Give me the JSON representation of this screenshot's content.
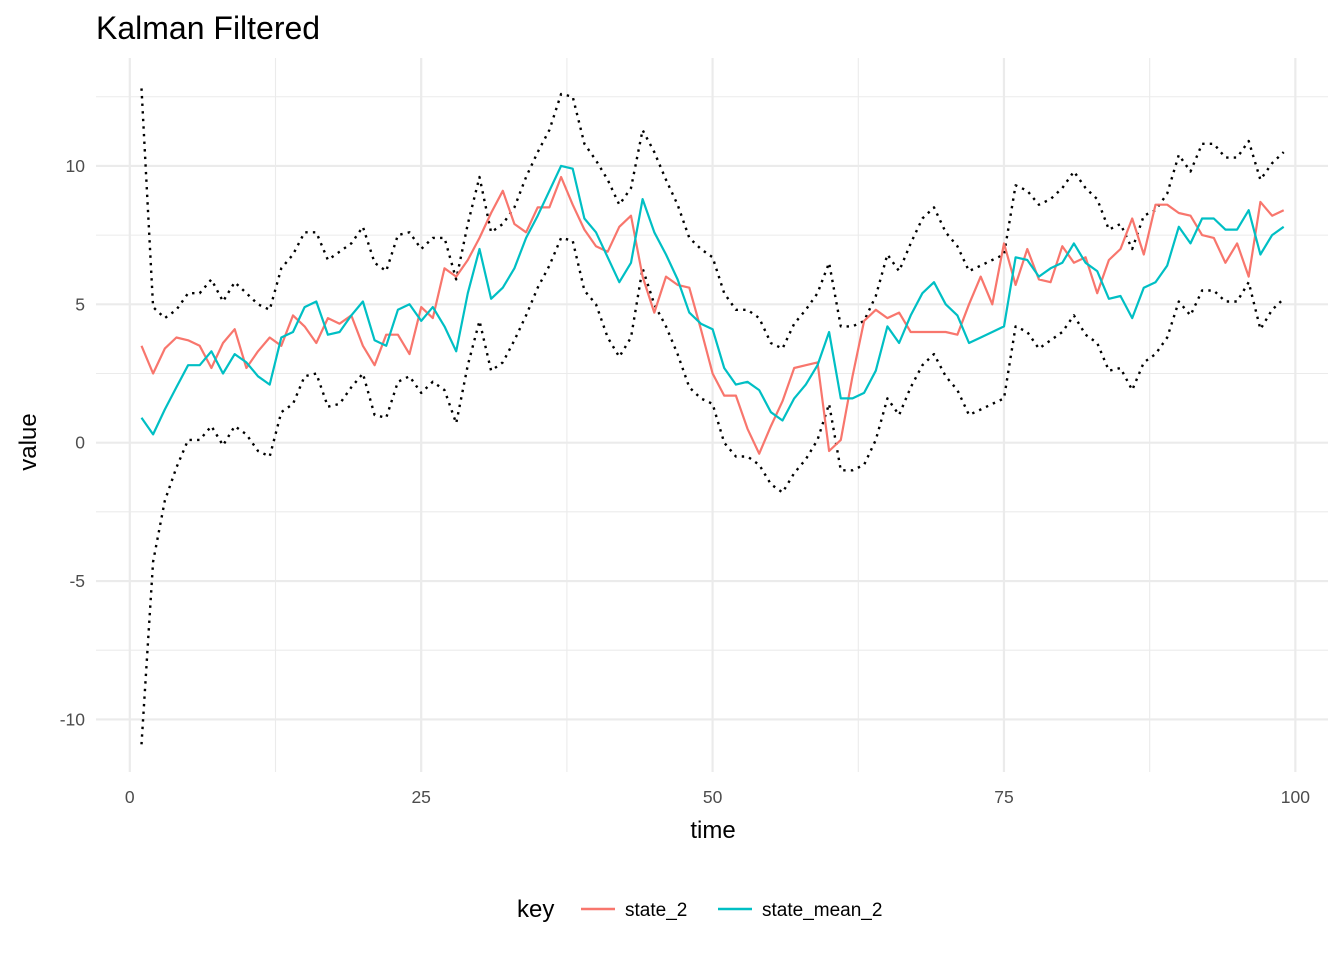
{
  "chart_data": {
    "type": "line",
    "title": "Kalman Filtered",
    "xlabel": "time",
    "ylabel": "value",
    "xlim": [
      -2.9,
      102.8
    ],
    "ylim": [
      -11.9,
      13.9
    ],
    "xticks": [
      0,
      25,
      50,
      75,
      100
    ],
    "xtick_labels": [
      "0",
      "25",
      "50",
      "75",
      "100"
    ],
    "yticks": [
      -10,
      -5,
      0,
      5,
      10
    ],
    "ytick_labels": [
      "-10",
      "-5",
      "0",
      "5",
      "10"
    ],
    "grid": true,
    "legend": {
      "title": "key",
      "position": "bottom",
      "entries": [
        "state_2",
        "state_mean_2"
      ]
    },
    "x": [
      1,
      2,
      3,
      4,
      5,
      6,
      7,
      8,
      9,
      10,
      11,
      12,
      13,
      14,
      15,
      16,
      17,
      18,
      19,
      20,
      21,
      22,
      23,
      24,
      25,
      26,
      27,
      28,
      29,
      30,
      31,
      32,
      33,
      34,
      35,
      36,
      37,
      38,
      39,
      40,
      41,
      42,
      43,
      44,
      45,
      46,
      47,
      48,
      49,
      50,
      51,
      52,
      53,
      54,
      55,
      56,
      57,
      58,
      59,
      60,
      61,
      62,
      63,
      64,
      65,
      66,
      67,
      68,
      69,
      70,
      71,
      72,
      73,
      74,
      75,
      76,
      77,
      78,
      79,
      80,
      81,
      82,
      83,
      84,
      85,
      86,
      87,
      88,
      89,
      90,
      91,
      92,
      93,
      94,
      95,
      96,
      97,
      98,
      99
    ],
    "series": [
      {
        "name": "state_2",
        "color": "#F8766D",
        "style": "solid",
        "values": [
          3.5,
          2.5,
          3.4,
          3.8,
          3.7,
          3.5,
          2.7,
          3.6,
          4.1,
          2.7,
          3.3,
          3.8,
          3.5,
          4.6,
          4.2,
          3.6,
          4.5,
          4.3,
          4.6,
          3.5,
          2.8,
          3.9,
          3.9,
          3.2,
          4.9,
          4.5,
          6.3,
          6.0,
          6.6,
          7.4,
          8.3,
          9.1,
          7.9,
          7.6,
          8.5,
          8.5,
          9.6,
          8.6,
          7.7,
          7.1,
          6.9,
          7.8,
          8.2,
          6.0,
          4.7,
          6.0,
          5.7,
          5.6,
          4.1,
          2.5,
          1.7,
          1.7,
          0.5,
          -0.4,
          0.6,
          1.5,
          2.7,
          2.8,
          2.9,
          -0.3,
          0.1,
          2.4,
          4.4,
          4.8,
          4.5,
          4.7,
          4.0,
          4.0,
          4.0,
          4.0,
          3.9,
          5.0,
          6.0,
          5.0,
          7.2,
          5.7,
          7.0,
          5.9,
          5.8,
          7.1,
          6.5,
          6.7,
          5.4,
          6.6,
          7.0,
          8.1,
          6.8,
          8.6,
          8.6,
          8.3,
          8.2,
          7.5,
          7.4,
          6.5,
          7.2,
          6.0,
          8.7,
          8.2,
          8.4
        ]
      },
      {
        "name": "state_mean_2",
        "color": "#00BFC4",
        "style": "solid",
        "values": [
          0.9,
          0.3,
          1.2,
          2.0,
          2.8,
          2.8,
          3.3,
          2.5,
          3.2,
          2.9,
          2.4,
          2.1,
          3.8,
          4.0,
          4.9,
          5.1,
          3.9,
          4.0,
          4.6,
          5.1,
          3.7,
          3.5,
          4.8,
          5.0,
          4.4,
          4.9,
          4.2,
          3.3,
          5.4,
          7.0,
          5.2,
          5.6,
          6.3,
          7.4,
          8.2,
          9.1,
          10.0,
          9.9,
          8.1,
          7.6,
          6.7,
          5.8,
          6.5,
          8.8,
          7.6,
          6.8,
          5.9,
          4.7,
          4.3,
          4.1,
          2.7,
          2.1,
          2.2,
          1.9,
          1.1,
          0.8,
          1.6,
          2.1,
          2.8,
          4.0,
          1.6,
          1.6,
          1.8,
          2.6,
          4.2,
          3.6,
          4.6,
          5.4,
          5.8,
          5.0,
          4.6,
          3.6,
          3.8,
          4.0,
          4.2,
          6.7,
          6.6,
          6.0,
          6.3,
          6.5,
          7.2,
          6.5,
          6.2,
          5.2,
          5.3,
          4.5,
          5.6,
          5.8,
          6.4,
          7.8,
          7.2,
          8.1,
          8.1,
          7.7,
          7.7,
          8.4,
          6.8,
          7.5,
          7.8
        ]
      },
      {
        "name": "",
        "color": "#000000",
        "style": "dotted",
        "values": [
          12.8,
          4.9,
          4.5,
          4.8,
          5.4,
          5.4,
          5.9,
          5.1,
          5.8,
          5.4,
          5.0,
          4.8,
          6.3,
          6.8,
          7.6,
          7.6,
          6.6,
          6.9,
          7.2,
          7.8,
          6.5,
          6.2,
          7.5,
          7.6,
          7.0,
          7.4,
          7.4,
          5.9,
          7.9,
          9.6,
          7.6,
          7.9,
          8.5,
          9.6,
          10.5,
          11.3,
          12.6,
          12.5,
          10.8,
          10.2,
          9.5,
          8.6,
          9.2,
          11.3,
          10.5,
          9.5,
          8.6,
          7.4,
          7.0,
          6.7,
          5.4,
          4.8,
          4.8,
          4.5,
          3.6,
          3.4,
          4.3,
          4.8,
          5.4,
          6.5,
          4.2,
          4.2,
          4.4,
          5.3,
          6.8,
          6.2,
          7.2,
          8.1,
          8.5,
          7.6,
          7.1,
          6.2,
          6.4,
          6.6,
          6.8,
          9.3,
          9.1,
          8.6,
          8.8,
          9.2,
          9.8,
          9.2,
          8.8,
          7.7,
          7.9,
          7.0,
          8.2,
          8.4,
          9.0,
          10.4,
          9.8,
          10.8,
          10.8,
          10.3,
          10.3,
          10.9,
          9.5,
          10.1,
          10.5
        ]
      },
      {
        "name": "",
        "color": "#000000",
        "style": "dotted",
        "values": [
          -10.9,
          -4.3,
          -2.1,
          -0.9,
          0.1,
          0.1,
          0.6,
          -0.1,
          0.6,
          0.3,
          -0.3,
          -0.5,
          1.1,
          1.4,
          2.4,
          2.5,
          1.3,
          1.4,
          2.0,
          2.5,
          1.0,
          0.9,
          2.2,
          2.4,
          1.8,
          2.2,
          1.9,
          0.7,
          2.8,
          4.4,
          2.6,
          2.9,
          3.7,
          4.6,
          5.6,
          6.4,
          7.4,
          7.3,
          5.5,
          5.0,
          3.8,
          3.1,
          3.8,
          6.3,
          5.0,
          4.2,
          3.2,
          2.0,
          1.6,
          1.4,
          0.0,
          -0.5,
          -0.5,
          -0.8,
          -1.5,
          -1.8,
          -1.1,
          -0.6,
          0.1,
          1.4,
          -1.0,
          -1.0,
          -0.8,
          0.1,
          1.6,
          1.0,
          2.0,
          2.8,
          3.2,
          2.4,
          1.9,
          1.0,
          1.2,
          1.4,
          1.6,
          4.2,
          4.0,
          3.4,
          3.7,
          4.0,
          4.6,
          3.9,
          3.6,
          2.6,
          2.7,
          1.9,
          2.9,
          3.2,
          3.8,
          5.1,
          4.6,
          5.5,
          5.5,
          5.1,
          5.1,
          5.8,
          4.1,
          4.8,
          5.2
        ]
      }
    ]
  }
}
